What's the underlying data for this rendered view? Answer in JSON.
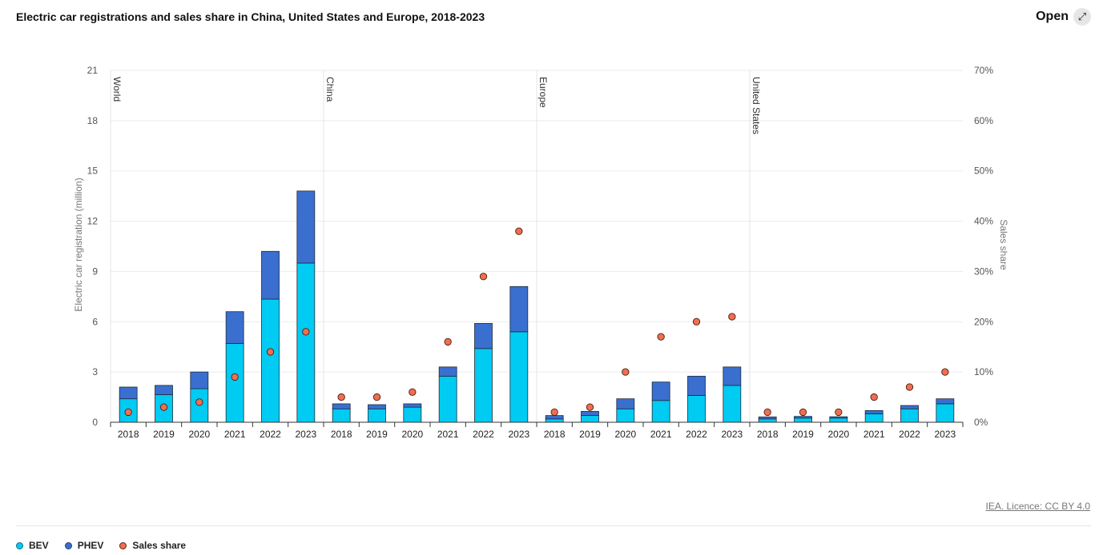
{
  "header": {
    "title": "Electric car registrations and sales share in China, United States and Europe, 2018-2023",
    "open_label": "Open",
    "open_icon": "expand-icon"
  },
  "footer": {
    "licence": "IEA. Licence: CC BY 4.0"
  },
  "legend": [
    {
      "label": "BEV",
      "color": "#00cbf2"
    },
    {
      "label": "PHEV",
      "color": "#3a6fd0"
    },
    {
      "label": "Sales share",
      "color": "#ef6f4f"
    }
  ],
  "chart_data": {
    "type": "bar",
    "stacked": true,
    "ylabel": "Electric car registration (million)",
    "y2label": "Sales share",
    "ylim": [
      0,
      21
    ],
    "y2lim": [
      0,
      70
    ],
    "yticks": [
      "0",
      "3",
      "6",
      "9",
      "12",
      "15",
      "18",
      "21"
    ],
    "y2ticks": [
      "0%",
      "10%",
      "20%",
      "30%",
      "40%",
      "50%",
      "60%",
      "70%"
    ],
    "grid": true,
    "legend_position": "bottom-left",
    "years": [
      "2018",
      "2019",
      "2020",
      "2021",
      "2022",
      "2023"
    ],
    "groups": [
      {
        "name": "World",
        "bev": [
          1.4,
          1.65,
          2.0,
          4.7,
          7.35,
          9.5
        ],
        "phev": [
          0.7,
          0.55,
          1.0,
          1.9,
          2.85,
          4.3
        ],
        "share": [
          2,
          3,
          4,
          9,
          14,
          18
        ]
      },
      {
        "name": "China",
        "bev": [
          0.8,
          0.8,
          0.9,
          2.75,
          4.4,
          5.4
        ],
        "phev": [
          0.3,
          0.25,
          0.2,
          0.55,
          1.5,
          2.7
        ],
        "share": [
          5,
          5,
          6,
          16,
          29,
          38
        ]
      },
      {
        "name": "Europe",
        "bev": [
          0.2,
          0.4,
          0.8,
          1.3,
          1.6,
          2.2
        ],
        "phev": [
          0.2,
          0.25,
          0.6,
          1.1,
          1.15,
          1.1
        ],
        "share": [
          2,
          3,
          10,
          17,
          20,
          21
        ]
      },
      {
        "name": "United States",
        "bev": [
          0.2,
          0.25,
          0.25,
          0.5,
          0.8,
          1.1
        ],
        "phev": [
          0.12,
          0.1,
          0.08,
          0.2,
          0.2,
          0.3
        ],
        "share": [
          2,
          2,
          2,
          5,
          7,
          10
        ]
      }
    ]
  }
}
